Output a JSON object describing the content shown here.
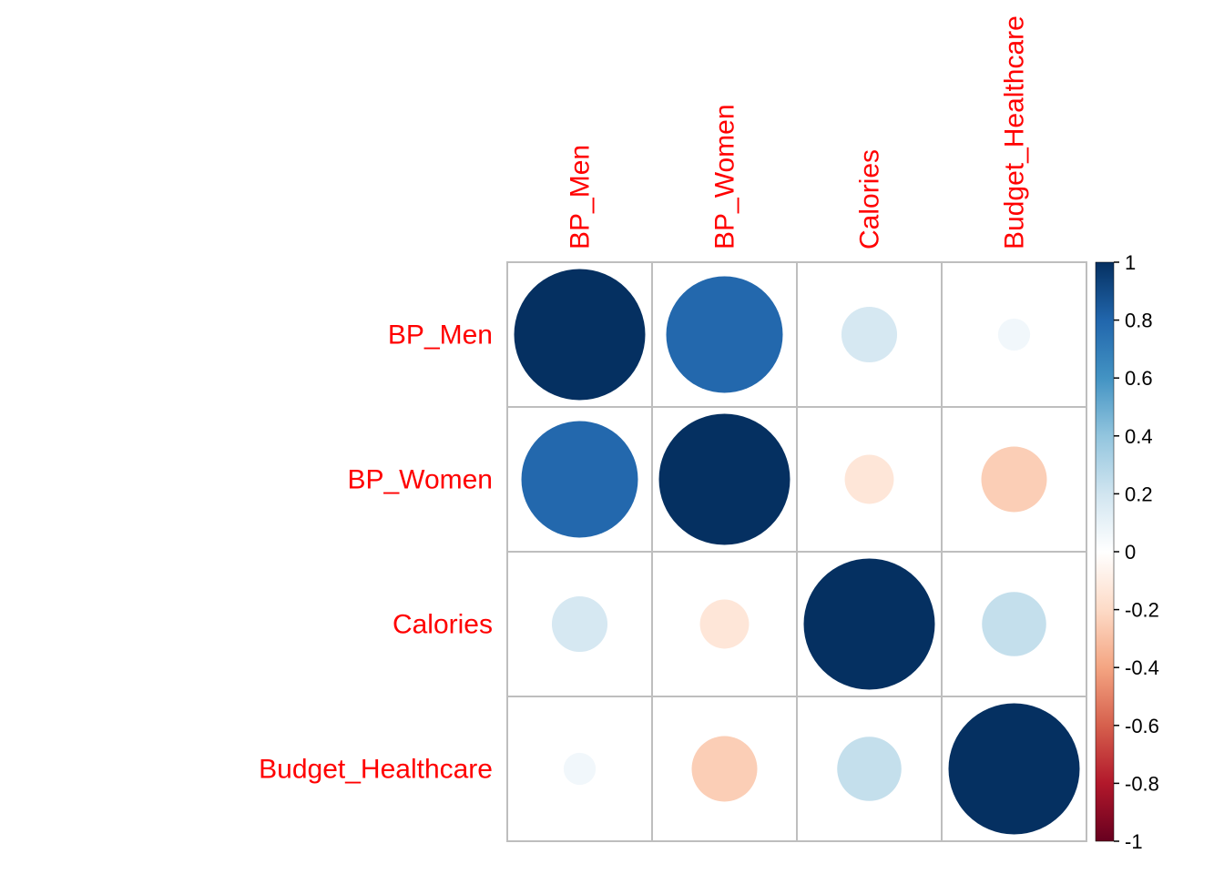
{
  "chart_data": {
    "type": "heatmap",
    "variables": [
      "BP_Men",
      "BP_Women",
      "Calories",
      "Budget_Healthcare"
    ],
    "matrix": [
      [
        1.0,
        0.79,
        0.18,
        0.06
      ],
      [
        0.79,
        1.0,
        -0.14,
        -0.25
      ],
      [
        0.18,
        -0.14,
        1.0,
        0.24
      ],
      [
        0.06,
        -0.25,
        0.24,
        1.0
      ]
    ],
    "colorbar": {
      "range": [
        -1,
        1
      ],
      "ticks": [
        "1",
        "0.8",
        "0.6",
        "0.4",
        "0.2",
        "0",
        "-0.2",
        "-0.4",
        "-0.6",
        "-0.8",
        "-1"
      ],
      "colors": [
        "#67001F",
        "#B2182B",
        "#D6604D",
        "#F4A582",
        "#FDDBC7",
        "#FFFFFF",
        "#D1E5F0",
        "#92C5DE",
        "#4393C3",
        "#2166AC",
        "#053061"
      ]
    },
    "label_color": "#FF0000",
    "grid": true
  }
}
